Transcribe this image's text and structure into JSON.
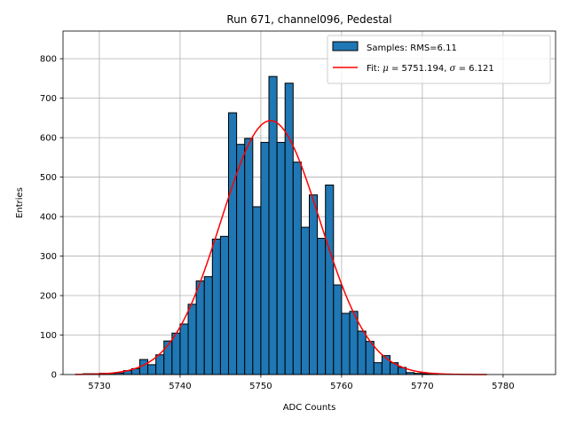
{
  "chart_data": {
    "type": "bar",
    "title": "Run 671, channel096, Pedestal",
    "xlabel": "ADC Counts",
    "ylabel": "Entries",
    "xlim": [
      5725.5,
      5786.5
    ],
    "ylim": [
      0,
      870
    ],
    "grid": true,
    "legend_position": "top-right",
    "x_ticks": [
      5730,
      5740,
      5750,
      5760,
      5770,
      5780
    ],
    "y_ticks": [
      0,
      100,
      200,
      300,
      400,
      500,
      600,
      700,
      800
    ],
    "histogram": {
      "name": "Samples: RMS=6.11",
      "bin_width": 1,
      "color": "#1f77b4",
      "edge_color": "#000000",
      "bins": [
        [
          5728,
          2
        ],
        [
          5729,
          2
        ],
        [
          5730,
          3
        ],
        [
          5731,
          3
        ],
        [
          5732,
          4
        ],
        [
          5733,
          10
        ],
        [
          5734,
          15
        ],
        [
          5735,
          38
        ],
        [
          5736,
          25
        ],
        [
          5737,
          50
        ],
        [
          5738,
          85
        ],
        [
          5739,
          105
        ],
        [
          5740,
          128
        ],
        [
          5741,
          178
        ],
        [
          5742,
          237
        ],
        [
          5743,
          248
        ],
        [
          5744,
          343
        ],
        [
          5745,
          350
        ],
        [
          5746,
          663
        ],
        [
          5747,
          583
        ],
        [
          5748,
          598
        ],
        [
          5749,
          425
        ],
        [
          5750,
          588
        ],
        [
          5751,
          755
        ],
        [
          5752,
          588
        ],
        [
          5753,
          738
        ],
        [
          5754,
          538
        ],
        [
          5755,
          373
        ],
        [
          5756,
          455
        ],
        [
          5757,
          345
        ],
        [
          5758,
          480
        ],
        [
          5759,
          227
        ],
        [
          5760,
          155
        ],
        [
          5761,
          160
        ],
        [
          5762,
          110
        ],
        [
          5763,
          84
        ],
        [
          5764,
          30
        ],
        [
          5765,
          48
        ],
        [
          5766,
          30
        ],
        [
          5767,
          18
        ],
        [
          5768,
          5
        ],
        [
          5769,
          3
        ],
        [
          5770,
          2
        ],
        [
          5771,
          1
        ]
      ]
    },
    "fit": {
      "name": "Fit: $\\mu$ = 5751.194, $\\sigma$ = 6.121",
      "mu_symbol": "μ",
      "sigma_symbol": "σ",
      "mu": 5751.194,
      "sigma": 6.121,
      "amplitude": 643,
      "x_range": [
        5727,
        5778
      ],
      "color": "#ff0000"
    },
    "legend": {
      "hist_label": "Samples: RMS=6.11",
      "fit_prefix": "Fit: ",
      "fit_mu_text": " = 5751.194, ",
      "fit_sigma_text": " = 6.121"
    }
  }
}
